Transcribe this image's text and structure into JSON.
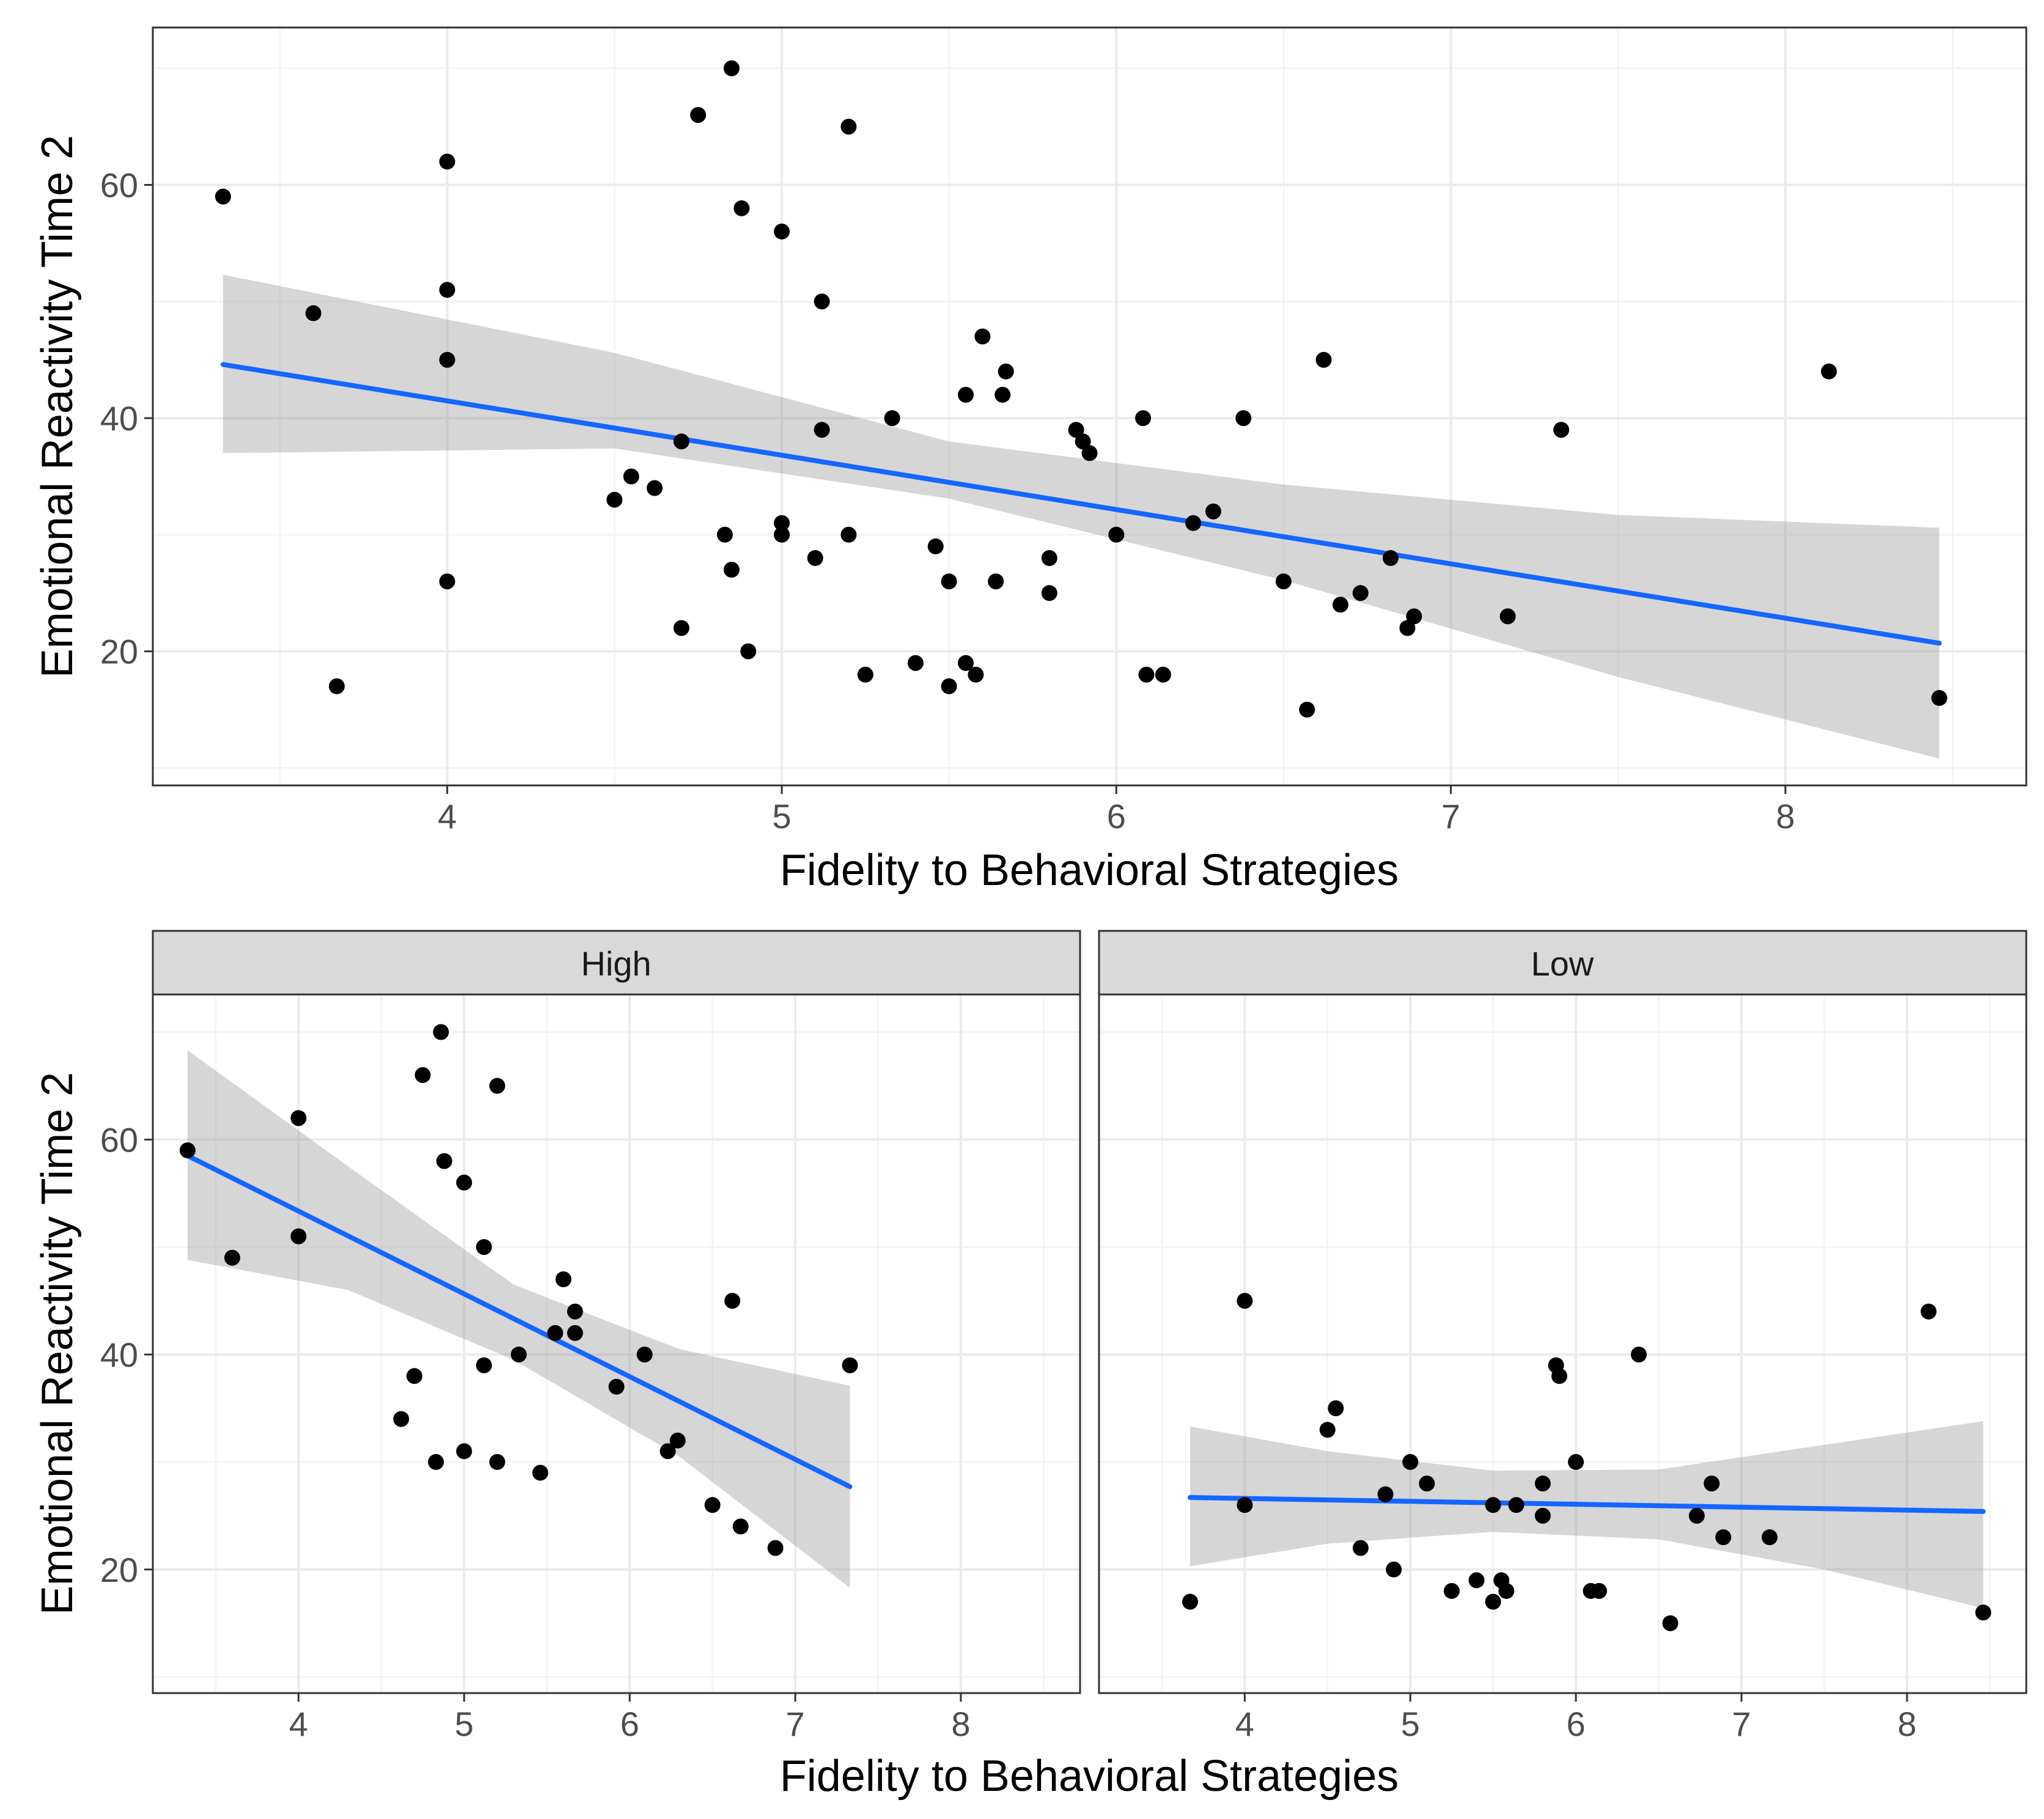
{
  "chart_data": [
    {
      "type": "scatter",
      "title": "",
      "xlabel": "Fidelity to Behavioral Strategies",
      "ylabel": "Emotional Reactivity Time 2",
      "xlim": [
        3.12,
        8.72
      ],
      "ylim": [
        8.5,
        73.5
      ],
      "x_ticks": [
        4,
        5,
        6,
        7,
        8
      ],
      "y_ticks": [
        20,
        40,
        60
      ],
      "grid": true,
      "colors": {
        "point": "#000000",
        "line": "#1466ff",
        "band": "#999999"
      },
      "points": [
        [
          3.33,
          59
        ],
        [
          3.6,
          49
        ],
        [
          3.67,
          17
        ],
        [
          4.0,
          62
        ],
        [
          4.0,
          51
        ],
        [
          4.0,
          45
        ],
        [
          4.0,
          26
        ],
        [
          4.5,
          33
        ],
        [
          4.55,
          35
        ],
        [
          4.62,
          34
        ],
        [
          4.7,
          38
        ],
        [
          4.7,
          22
        ],
        [
          4.75,
          66
        ],
        [
          4.83,
          30
        ],
        [
          4.85,
          27
        ],
        [
          4.85,
          70
        ],
        [
          4.88,
          58
        ],
        [
          4.9,
          20
        ],
        [
          5.0,
          56
        ],
        [
          5.0,
          31
        ],
        [
          5.0,
          30
        ],
        [
          5.1,
          28
        ],
        [
          5.12,
          50
        ],
        [
          5.12,
          39
        ],
        [
          5.2,
          65
        ],
        [
          5.2,
          30
        ],
        [
          5.25,
          18
        ],
        [
          5.33,
          40
        ],
        [
          5.4,
          19
        ],
        [
          5.46,
          29
        ],
        [
          5.5,
          26
        ],
        [
          5.5,
          17
        ],
        [
          5.55,
          42
        ],
        [
          5.55,
          19
        ],
        [
          5.58,
          18
        ],
        [
          5.6,
          47
        ],
        [
          5.64,
          26
        ],
        [
          5.66,
          42
        ],
        [
          5.67,
          44
        ],
        [
          5.8,
          28
        ],
        [
          5.8,
          25
        ],
        [
          5.88,
          39
        ],
        [
          5.9,
          38
        ],
        [
          5.92,
          37
        ],
        [
          6.0,
          30
        ],
        [
          6.08,
          40
        ],
        [
          6.09,
          18
        ],
        [
          6.14,
          18
        ],
        [
          6.23,
          31
        ],
        [
          6.29,
          32
        ],
        [
          6.38,
          40
        ],
        [
          6.5,
          26
        ],
        [
          6.57,
          15
        ],
        [
          6.62,
          45
        ],
        [
          6.67,
          24
        ],
        [
          6.73,
          25
        ],
        [
          6.82,
          28
        ],
        [
          6.87,
          22
        ],
        [
          6.89,
          23
        ],
        [
          7.17,
          23
        ],
        [
          7.33,
          39
        ],
        [
          8.13,
          44
        ],
        [
          8.46,
          16
        ]
      ],
      "fit": {
        "x": [
          3.33,
          8.46
        ],
        "y": [
          44.6,
          20.7
        ]
      },
      "ci_band": {
        "x": [
          3.33,
          4.5,
          5.5,
          6.5,
          7.5,
          8.46
        ],
        "lower": [
          37.0,
          37.4,
          33.1,
          26.1,
          17.8,
          10.8
        ],
        "upper": [
          52.3,
          45.6,
          38.0,
          34.3,
          31.7,
          30.6
        ]
      }
    },
    {
      "type": "scatter",
      "facet": "High",
      "xlabel": "Fidelity to Behavioral Strategies",
      "ylabel": "Emotional Reactivity Time 2",
      "xlim": [
        3.12,
        8.72
      ],
      "ylim": [
        8.5,
        73.5
      ],
      "x_ticks": [
        4,
        5,
        6,
        7,
        8
      ],
      "y_ticks": [
        20,
        40,
        60
      ],
      "grid": true,
      "points": [
        [
          3.33,
          59
        ],
        [
          3.6,
          49
        ],
        [
          4.0,
          62
        ],
        [
          4.0,
          51
        ],
        [
          4.62,
          34
        ],
        [
          4.7,
          38
        ],
        [
          4.75,
          66
        ],
        [
          4.83,
          30
        ],
        [
          4.86,
          70
        ],
        [
          4.88,
          58
        ],
        [
          5.0,
          56
        ],
        [
          5.0,
          31
        ],
        [
          5.12,
          50
        ],
        [
          5.12,
          39
        ],
        [
          5.2,
          65
        ],
        [
          5.2,
          30
        ],
        [
          5.33,
          40
        ],
        [
          5.46,
          29
        ],
        [
          5.55,
          42
        ],
        [
          5.6,
          47
        ],
        [
          5.67,
          44
        ],
        [
          5.67,
          42
        ],
        [
          5.92,
          37
        ],
        [
          6.09,
          40
        ],
        [
          6.23,
          31
        ],
        [
          6.29,
          32
        ],
        [
          6.5,
          26
        ],
        [
          6.62,
          45
        ],
        [
          6.67,
          24
        ],
        [
          6.88,
          22
        ],
        [
          7.33,
          39
        ]
      ],
      "fit": {
        "x": [
          3.33,
          7.33
        ],
        "y": [
          58.5,
          27.7
        ]
      },
      "ci_band": {
        "x": [
          3.33,
          4.3,
          5.3,
          6.3,
          7.33
        ],
        "lower": [
          48.8,
          46.0,
          39.5,
          30.5,
          18.3
        ],
        "upper": [
          68.3,
          57.5,
          46.5,
          40.5,
          37.1
        ]
      }
    },
    {
      "type": "scatter",
      "facet": "Low",
      "xlabel": "Fidelity to Behavioral Strategies",
      "ylabel": "Emotional Reactivity Time 2",
      "xlim": [
        3.12,
        8.72
      ],
      "ylim": [
        8.5,
        73.5
      ],
      "x_ticks": [
        4,
        5,
        6,
        7,
        8
      ],
      "y_ticks": [
        20,
        40,
        60
      ],
      "grid": true,
      "points": [
        [
          3.67,
          17
        ],
        [
          4.0,
          45
        ],
        [
          4.0,
          26
        ],
        [
          4.5,
          33
        ],
        [
          4.55,
          35
        ],
        [
          4.7,
          22
        ],
        [
          4.85,
          27
        ],
        [
          4.9,
          20
        ],
        [
          5.0,
          30
        ],
        [
          5.1,
          28
        ],
        [
          5.25,
          18
        ],
        [
          5.4,
          19
        ],
        [
          5.5,
          26
        ],
        [
          5.5,
          17
        ],
        [
          5.55,
          19
        ],
        [
          5.58,
          18
        ],
        [
          5.64,
          26
        ],
        [
          5.8,
          28
        ],
        [
          5.8,
          25
        ],
        [
          5.88,
          39
        ],
        [
          5.9,
          38
        ],
        [
          6.0,
          30
        ],
        [
          6.09,
          18
        ],
        [
          6.14,
          18
        ],
        [
          6.38,
          40
        ],
        [
          6.57,
          15
        ],
        [
          6.73,
          25
        ],
        [
          6.82,
          28
        ],
        [
          6.89,
          23
        ],
        [
          7.17,
          23
        ],
        [
          8.13,
          44
        ],
        [
          8.46,
          16
        ]
      ],
      "fit": {
        "x": [
          3.67,
          8.46
        ],
        "y": [
          26.7,
          25.4
        ]
      },
      "ci_band": {
        "x": [
          3.67,
          4.5,
          5.5,
          6.5,
          7.5,
          8.46
        ],
        "lower": [
          20.3,
          22.4,
          23.5,
          22.8,
          20.0,
          16.4
        ],
        "upper": [
          33.3,
          31.0,
          29.2,
          29.3,
          31.6,
          33.8
        ]
      }
    }
  ],
  "strip_labels": {
    "high": "High",
    "low": "Low"
  },
  "titles": {
    "top_x": "Fidelity to Behavioral Strategies",
    "top_y": "Emotional Reactivity Time 2",
    "bottom_x": "Fidelity to Behavioral Strategies",
    "bottom_y": "Emotional Reactivity Time 2"
  }
}
